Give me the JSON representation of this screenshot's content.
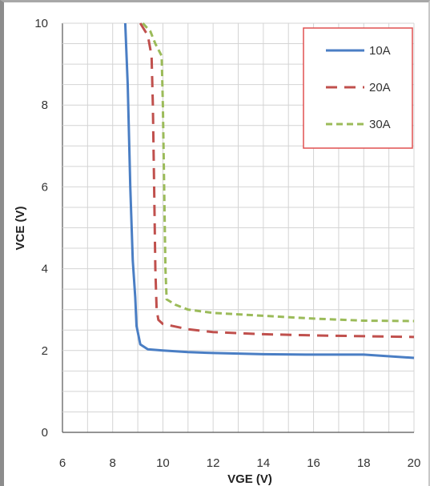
{
  "chart_data": {
    "type": "line",
    "xlabel": "VGE (V)",
    "ylabel": "VCE  (V)",
    "xlim": [
      6,
      20
    ],
    "ylim": [
      0,
      10
    ],
    "x_ticks": [
      "6",
      "8",
      "10",
      "12",
      "14",
      "16",
      "18",
      "20"
    ],
    "y_ticks": [
      "0",
      "2",
      "4",
      "6",
      "8",
      "10"
    ],
    "grid": true,
    "legend_position": "top-right",
    "series": [
      {
        "name": "10A",
        "color": "#4a7ec4",
        "dash": "solid",
        "points": [
          [
            8.5,
            10
          ],
          [
            8.6,
            8.5
          ],
          [
            8.7,
            6
          ],
          [
            8.8,
            4.2
          ],
          [
            8.9,
            3.3
          ],
          [
            8.95,
            2.6
          ],
          [
            9.1,
            2.15
          ],
          [
            9.4,
            2.03
          ],
          [
            10,
            2.0
          ],
          [
            11,
            1.96
          ],
          [
            12,
            1.94
          ],
          [
            14,
            1.91
          ],
          [
            16,
            1.9
          ],
          [
            18,
            1.9
          ],
          [
            20,
            1.82
          ]
        ]
      },
      {
        "name": "20A",
        "color": "#c0504d",
        "dash": "dashed",
        "points": [
          [
            9.1,
            10
          ],
          [
            9.4,
            9.7
          ],
          [
            9.55,
            9.2
          ],
          [
            9.6,
            8
          ],
          [
            9.65,
            6
          ],
          [
            9.7,
            4
          ],
          [
            9.75,
            3
          ],
          [
            9.82,
            2.75
          ],
          [
            10,
            2.65
          ],
          [
            11,
            2.52
          ],
          [
            12,
            2.45
          ],
          [
            14,
            2.4
          ],
          [
            16,
            2.37
          ],
          [
            18,
            2.35
          ],
          [
            20,
            2.33
          ]
        ]
      },
      {
        "name": "30A",
        "color": "#9bbb59",
        "dash": "dashed",
        "points": [
          [
            9.2,
            10
          ],
          [
            9.5,
            9.8
          ],
          [
            9.7,
            9.5
          ],
          [
            9.95,
            9.2
          ],
          [
            10.0,
            8
          ],
          [
            10.05,
            6
          ],
          [
            10.1,
            4
          ],
          [
            10.15,
            3.25
          ],
          [
            10.5,
            3.12
          ],
          [
            11,
            3.0
          ],
          [
            12,
            2.92
          ],
          [
            14,
            2.85
          ],
          [
            16,
            2.78
          ],
          [
            18,
            2.73
          ],
          [
            20,
            2.72
          ]
        ]
      }
    ]
  }
}
